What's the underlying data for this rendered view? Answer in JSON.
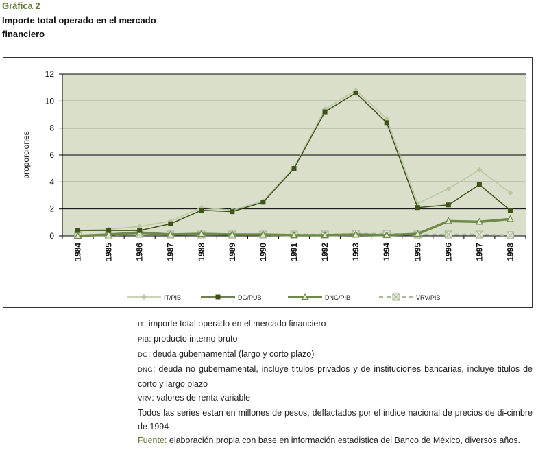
{
  "figure": {
    "label": "Gráfica 2",
    "title": "Importe total operado en el mercado financiero"
  },
  "notes": [
    {
      "abbr": "it",
      "text": ": importe total operado en el mercado financiero"
    },
    {
      "abbr": "pib",
      "text": ": producto interno bruto"
    },
    {
      "abbr": "dg",
      "text": ": deuda gubernamental (largo y corto plazo)"
    },
    {
      "abbr": "dng",
      "text": ": deuda no gubernamental, incluye titulos privados y de instituciones bancarias, incluye titulos de corto y largo plazo"
    },
    {
      "abbr": "vrv",
      "text": ": valores de renta variable"
    },
    {
      "abbr": "",
      "text": "Todos las series estan en millones de pesos, deflactados por el indice nacional de precios de di-cimbre de 1994"
    }
  ],
  "source": {
    "label": "Fuente:",
    "text": " elaboración propia con base en información estadistica del Banco de México, diversos años."
  },
  "colors": {
    "plot_bg": "#d9dfcb",
    "it": "#b9c6a0",
    "dg": "#3d5318",
    "dng": "#6e8a48",
    "vrv": "#aab998"
  },
  "chart_data": {
    "type": "line",
    "ylabel": "proporciones",
    "xlabel": "",
    "ylim": [
      0,
      12
    ],
    "yticks": [
      0,
      2,
      4,
      6,
      8,
      10,
      12
    ],
    "grid": true,
    "legend_position": "bottom",
    "categories": [
      "1984",
      "1985",
      "1986",
      "1987",
      "1988",
      "1989",
      "1990",
      "1991",
      "1992",
      "1993",
      "1994",
      "1995",
      "1996",
      "1997",
      "1998"
    ],
    "series": [
      {
        "name": "IT/PIB",
        "values": [
          0.4,
          0.5,
          0.7,
          1.1,
          2.1,
          1.9,
          2.6,
          5.1,
          9.4,
          10.8,
          8.7,
          2.4,
          3.5,
          4.9,
          3.2
        ]
      },
      {
        "name": "DG/PUB",
        "values": [
          0.4,
          0.4,
          0.4,
          0.9,
          1.9,
          1.8,
          2.5,
          5.0,
          9.2,
          10.6,
          8.4,
          2.1,
          2.3,
          3.8,
          1.9
        ]
      },
      {
        "name": "DNG/PIB",
        "values": [
          0.0,
          0.1,
          0.25,
          0.1,
          0.15,
          0.1,
          0.1,
          0.05,
          0.05,
          0.1,
          0.05,
          0.15,
          1.1,
          1.05,
          1.25
        ]
      },
      {
        "name": "VRV/PIB",
        "values": [
          0.05,
          0.05,
          0.15,
          0.1,
          0.1,
          0.1,
          0.1,
          0.1,
          0.1,
          0.15,
          0.15,
          0.1,
          0.1,
          0.1,
          0.05
        ]
      }
    ]
  }
}
